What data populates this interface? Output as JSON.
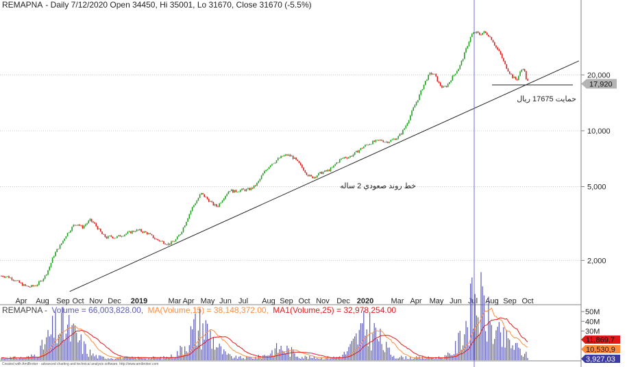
{
  "header": {
    "symbol": "REMAPNA",
    "info": "- Daily 7/12/2020 Open 34450, Hi 35001, Lo 31670, Close 31670 (-5.5%)"
  },
  "footer_text": "Created with AmiBroker - advanced charting and technical analysis software. http://www.amibroker.com",
  "chart_data": [
    {
      "type": "candlestick",
      "title": "REMAPNA - Daily 7/12/2020 Open 34450, Hi 35001, Lo 31670, Close 31670 (-5.5%)",
      "y_scale": "log",
      "ylim": [
        1300,
        45000
      ],
      "y_ticks": [
        2000,
        5000,
        10000,
        20000
      ],
      "y_tick_labels": [
        "2,000",
        "5,000",
        "10,000",
        "20,000"
      ],
      "x_labels": [
        "Apr",
        "Aug",
        "Sep",
        "Oct",
        "Nov",
        "Dec",
        "2019",
        "Mar",
        "Apr",
        "May",
        "Jun",
        "Jul",
        "Aug",
        "Sep",
        "Oct",
        "Nov",
        "Dec",
        "2020",
        "Mar",
        "Apr",
        "May",
        "Jun",
        "Jul",
        "Aug",
        "Sep",
        "Oct"
      ],
      "x_bold_labels": [
        "2019",
        "2020"
      ],
      "price_path": [
        [
          0,
          1650
        ],
        [
          8,
          1640
        ],
        [
          15,
          1600
        ],
        [
          22,
          1550
        ],
        [
          28,
          1500
        ],
        [
          34,
          1460
        ],
        [
          40,
          1440
        ],
        [
          46,
          1450
        ],
        [
          52,
          1480
        ],
        [
          58,
          1550
        ],
        [
          64,
          1650
        ],
        [
          70,
          1830
        ],
        [
          76,
          2100
        ],
        [
          82,
          2300
        ],
        [
          86,
          2400
        ],
        [
          90,
          2550
        ],
        [
          95,
          2750
        ],
        [
          100,
          2900
        ],
        [
          106,
          3100
        ],
        [
          112,
          3150
        ],
        [
          118,
          3000
        ],
        [
          124,
          3150
        ],
        [
          130,
          3300
        ],
        [
          136,
          3150
        ],
        [
          142,
          2950
        ],
        [
          148,
          2750
        ],
        [
          154,
          2650
        ],
        [
          160,
          2700
        ],
        [
          166,
          2650
        ],
        [
          172,
          2700
        ],
        [
          178,
          2750
        ],
        [
          184,
          2800
        ],
        [
          190,
          2850
        ],
        [
          196,
          2900
        ],
        [
          202,
          2900
        ],
        [
          208,
          2850
        ],
        [
          214,
          2800
        ],
        [
          220,
          2700
        ],
        [
          226,
          2600
        ],
        [
          232,
          2550
        ],
        [
          238,
          2500
        ],
        [
          244,
          2450
        ],
        [
          250,
          2500
        ],
        [
          256,
          2600
        ],
        [
          262,
          2800
        ],
        [
          268,
          3100
        ],
        [
          274,
          3500
        ],
        [
          280,
          3900
        ],
        [
          286,
          4200
        ],
        [
          292,
          4600
        ],
        [
          298,
          4400
        ],
        [
          304,
          4200
        ],
        [
          310,
          4000
        ],
        [
          316,
          3900
        ],
        [
          322,
          4200
        ],
        [
          328,
          4500
        ],
        [
          334,
          4800
        ],
        [
          340,
          4700
        ],
        [
          346,
          4750
        ],
        [
          352,
          4800
        ],
        [
          358,
          4800
        ],
        [
          364,
          4850
        ],
        [
          370,
          5000
        ],
        [
          376,
          5300
        ],
        [
          382,
          5800
        ],
        [
          388,
          6200
        ],
        [
          394,
          6600
        ],
        [
          400,
          6800
        ],
        [
          406,
          7100
        ],
        [
          412,
          7300
        ],
        [
          418,
          7400
        ],
        [
          424,
          7300
        ],
        [
          430,
          7000
        ],
        [
          436,
          6600
        ],
        [
          442,
          6200
        ],
        [
          448,
          5800
        ],
        [
          454,
          5600
        ],
        [
          460,
          5700
        ],
        [
          466,
          5900
        ],
        [
          472,
          6000
        ],
        [
          478,
          6100
        ],
        [
          484,
          6300
        ],
        [
          490,
          6700
        ],
        [
          496,
          7000
        ],
        [
          502,
          7200
        ],
        [
          508,
          7200
        ],
        [
          514,
          7400
        ],
        [
          520,
          7700
        ],
        [
          526,
          8000
        ],
        [
          532,
          8300
        ],
        [
          538,
          8500
        ],
        [
          544,
          8700
        ],
        [
          550,
          8800
        ],
        [
          556,
          8900
        ],
        [
          562,
          8700
        ],
        [
          568,
          8800
        ],
        [
          574,
          9000
        ],
        [
          580,
          9200
        ],
        [
          586,
          9800
        ],
        [
          592,
          10700
        ],
        [
          598,
          12000
        ],
        [
          604,
          13500
        ],
        [
          610,
          15000
        ],
        [
          616,
          17000
        ],
        [
          622,
          19000
        ],
        [
          628,
          20500
        ],
        [
          634,
          20000
        ],
        [
          640,
          18000
        ],
        [
          646,
          17000
        ],
        [
          652,
          17500
        ],
        [
          658,
          19000
        ],
        [
          664,
          20500
        ],
        [
          670,
          22000
        ],
        [
          676,
          25000
        ],
        [
          682,
          29000
        ],
        [
          688,
          33000
        ],
        [
          694,
          34000
        ],
        [
          700,
          33000
        ],
        [
          706,
          34000
        ],
        [
          712,
          33000
        ],
        [
          718,
          31000
        ],
        [
          724,
          28000
        ],
        [
          730,
          26000
        ],
        [
          736,
          23000
        ],
        [
          742,
          21000
        ],
        [
          748,
          19500
        ],
        [
          754,
          18800
        ],
        [
          760,
          21000
        ],
        [
          764,
          22000
        ],
        [
          768,
          19000
        ],
        [
          772,
          17900
        ]
      ],
      "trendline": {
        "from": {
          "x_days": 100,
          "y": 1360
        },
        "to": {
          "x_days": 845,
          "y": 23800
        }
      },
      "trend_label": "خط روند صعودي 2 ساله",
      "support_line": {
        "value": 17675
      },
      "support_label": "حمايت 17675 ريال",
      "last_price": 17920,
      "last_price_label": "17,920",
      "cursor_label": "Jul"
    },
    {
      "type": "volume_bar",
      "title": "REMAPNA - Volume = 66,003,828.00, MA(Volume,15) = 38,148,372.00, MA1(Volume,25) = 32,978,254.00",
      "legend": [
        {
          "label": "REMAPNA -",
          "color": "#404040"
        },
        {
          "label": "Volume = 66,003,828.00,",
          "color": "#5a5ab4"
        },
        {
          "label": "MA(Volume,15) = 38,148,372.00,",
          "color": "#ff8c3c"
        },
        {
          "label": "MA1(Volume,25) = 32,978,254.00",
          "color": "#e01818"
        }
      ],
      "y_ticks": [
        30000000,
        40000000,
        50000000
      ],
      "y_tick_labels": [
        "30M",
        "40M",
        "50M"
      ],
      "ylim": [
        0,
        55000000
      ],
      "value_boxes": [
        {
          "label": "11,869,7",
          "color": "#e01818"
        },
        {
          "label": "10,530,9",
          "color": "#ff8c3c"
        },
        {
          "label": "3,927,03",
          "color": "#3a3aa0"
        }
      ]
    }
  ],
  "colors": {
    "up": "#1ea01e",
    "down": "#e01818",
    "volume": "#5a5ab4",
    "ma15": "#ff8c3c",
    "ma25": "#e01818",
    "cursor": "#6b6bd6",
    "grid": "#c8c8c8"
  }
}
